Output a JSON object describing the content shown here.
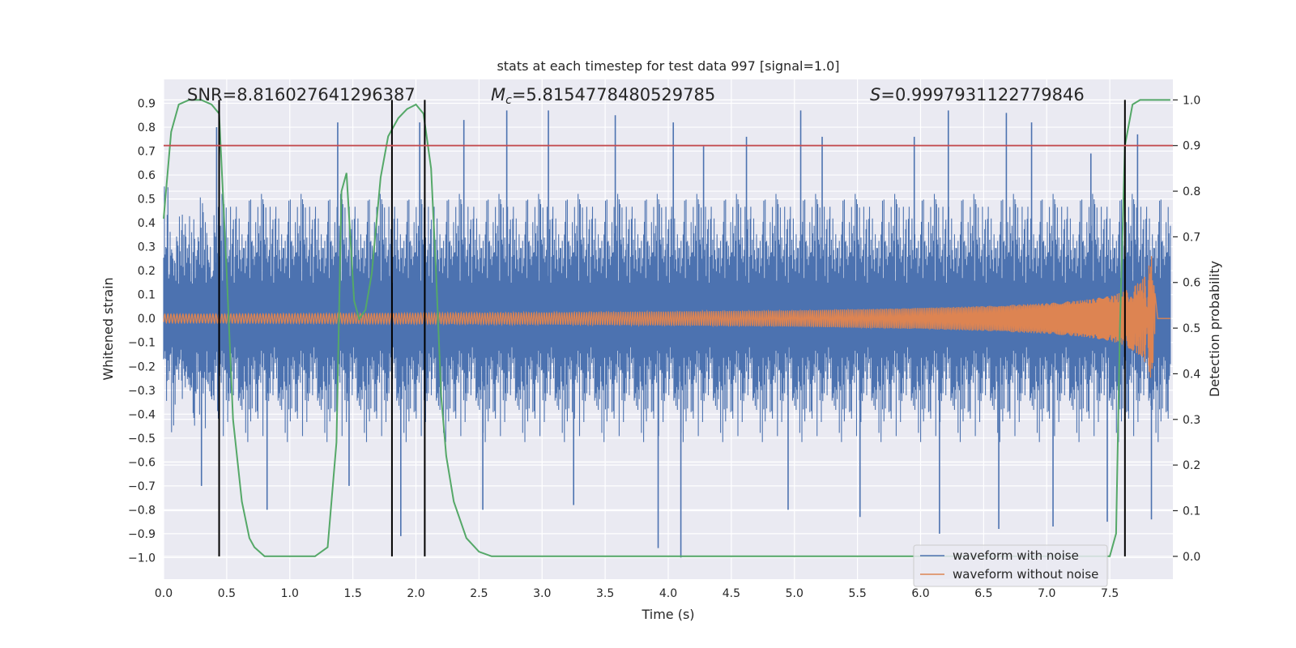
{
  "chart_data": {
    "type": "line",
    "title": "stats at each timestep for test data 997 [signal=1.0]",
    "xlabel": "Time (s)",
    "ylabel": "Whitened strain",
    "ylabel_right": "Detection probability",
    "xlim": [
      0.0,
      8.0
    ],
    "ylim": [
      -1.09,
      1.0
    ],
    "ylim_right": [
      -0.05,
      1.045
    ],
    "x_ticks": [
      "0.0",
      "0.5",
      "1.0",
      "1.5",
      "2.0",
      "2.5",
      "3.0",
      "3.5",
      "4.0",
      "4.5",
      "5.0",
      "5.5",
      "6.0",
      "6.5",
      "7.0",
      "7.5"
    ],
    "y_ticks": [
      "0.9",
      "0.8",
      "0.7",
      "0.6",
      "0.5",
      "0.4",
      "0.3",
      "0.2",
      "0.1",
      "0.0",
      "−0.1",
      "−0.2",
      "−0.3",
      "−0.4",
      "−0.5",
      "−0.6",
      "−0.7",
      "−0.8",
      "−0.9",
      "−1.0"
    ],
    "y_right_ticks": [
      "1.0",
      "0.9",
      "0.8",
      "0.7",
      "0.6",
      "0.5",
      "0.4",
      "0.3",
      "0.2",
      "0.1",
      "0.0"
    ],
    "annotations": {
      "snr": "SNR=8.816027641296387",
      "mc_prefix": "M",
      "mc_sub": "c",
      "mc_value": "=5.8154778480529785",
      "s_prefix": "S",
      "s_value": "=0.9997931122779846"
    },
    "threshold": {
      "y_right": 0.9,
      "color": "#c44e52"
    },
    "detection_lines_x": [
      0.44,
      1.81,
      2.07,
      7.62
    ],
    "series": [
      {
        "name": "waveform with noise",
        "color": "#4c72b0",
        "axis": "left",
        "description": "noisy whitened strain, roughly within [-1, 0.9]",
        "typical_max": 0.45,
        "typical_min": -0.42,
        "peaks_x": [
          0.42,
          1.38,
          2.03,
          2.38,
          2.72,
          3.05,
          3.58,
          4.04,
          4.28,
          4.62,
          5.05,
          5.22,
          5.95,
          6.22,
          6.68,
          6.88,
          7.35,
          7.72
        ],
        "peaks_y": [
          0.8,
          0.82,
          0.82,
          0.83,
          0.87,
          0.87,
          0.85,
          0.82,
          0.72,
          0.76,
          0.87,
          0.76,
          0.76,
          0.87,
          0.86,
          0.82,
          0.69,
          0.77
        ],
        "troughs_x": [
          0.3,
          0.82,
          1.47,
          1.88,
          2.53,
          3.25,
          3.92,
          4.1,
          4.95,
          5.52,
          6.15,
          6.62,
          7.05,
          7.48,
          7.83
        ],
        "troughs_y": [
          -0.7,
          -0.8,
          -0.7,
          -0.91,
          -0.8,
          -0.78,
          -0.96,
          -1.0,
          -0.8,
          -0.83,
          -0.9,
          -0.88,
          -0.87,
          -0.85,
          -0.84
        ]
      },
      {
        "name": "waveform without noise",
        "color": "#dd8452",
        "axis": "left",
        "description": "chirp signal, merger near t=7.8 s",
        "x": [
          0.0,
          1.0,
          2.0,
          3.0,
          4.0,
          5.0,
          6.0,
          6.5,
          7.0,
          7.3,
          7.5,
          7.6,
          7.7,
          7.75,
          7.8,
          7.83,
          7.85,
          7.88,
          7.95
        ],
        "amplitude": [
          0.018,
          0.02,
          0.022,
          0.025,
          0.029,
          0.034,
          0.044,
          0.052,
          0.064,
          0.078,
          0.094,
          0.11,
          0.14,
          0.16,
          0.2,
          0.27,
          0.15,
          0.0,
          0.0
        ]
      },
      {
        "name": "detection probability",
        "color": "#55a868",
        "axis": "right",
        "x": [
          0.0,
          0.06,
          0.12,
          0.2,
          0.3,
          0.38,
          0.44,
          0.5,
          0.55,
          0.62,
          0.68,
          0.72,
          0.8,
          0.9,
          1.2,
          1.3,
          1.37,
          1.41,
          1.45,
          1.48,
          1.51,
          1.55,
          1.6,
          1.65,
          1.72,
          1.78,
          1.86,
          1.93,
          2.0,
          2.06,
          2.12,
          2.16,
          2.2,
          2.24,
          2.3,
          2.4,
          2.5,
          2.6,
          3.0,
          7.5,
          7.55,
          7.58,
          7.62,
          7.68,
          7.74,
          7.85,
          7.98
        ],
        "values": [
          0.74,
          0.93,
          0.99,
          1.0,
          1.0,
          0.99,
          0.97,
          0.62,
          0.3,
          0.12,
          0.04,
          0.02,
          0.0,
          0.0,
          0.0,
          0.02,
          0.25,
          0.8,
          0.84,
          0.7,
          0.56,
          0.52,
          0.54,
          0.62,
          0.83,
          0.92,
          0.96,
          0.98,
          0.99,
          0.97,
          0.85,
          0.62,
          0.35,
          0.22,
          0.12,
          0.04,
          0.01,
          0.0,
          0.0,
          0.0,
          0.05,
          0.5,
          0.9,
          0.99,
          1.0,
          1.0,
          1.0
        ]
      }
    ],
    "legend": {
      "placement": "lower-right"
    }
  }
}
